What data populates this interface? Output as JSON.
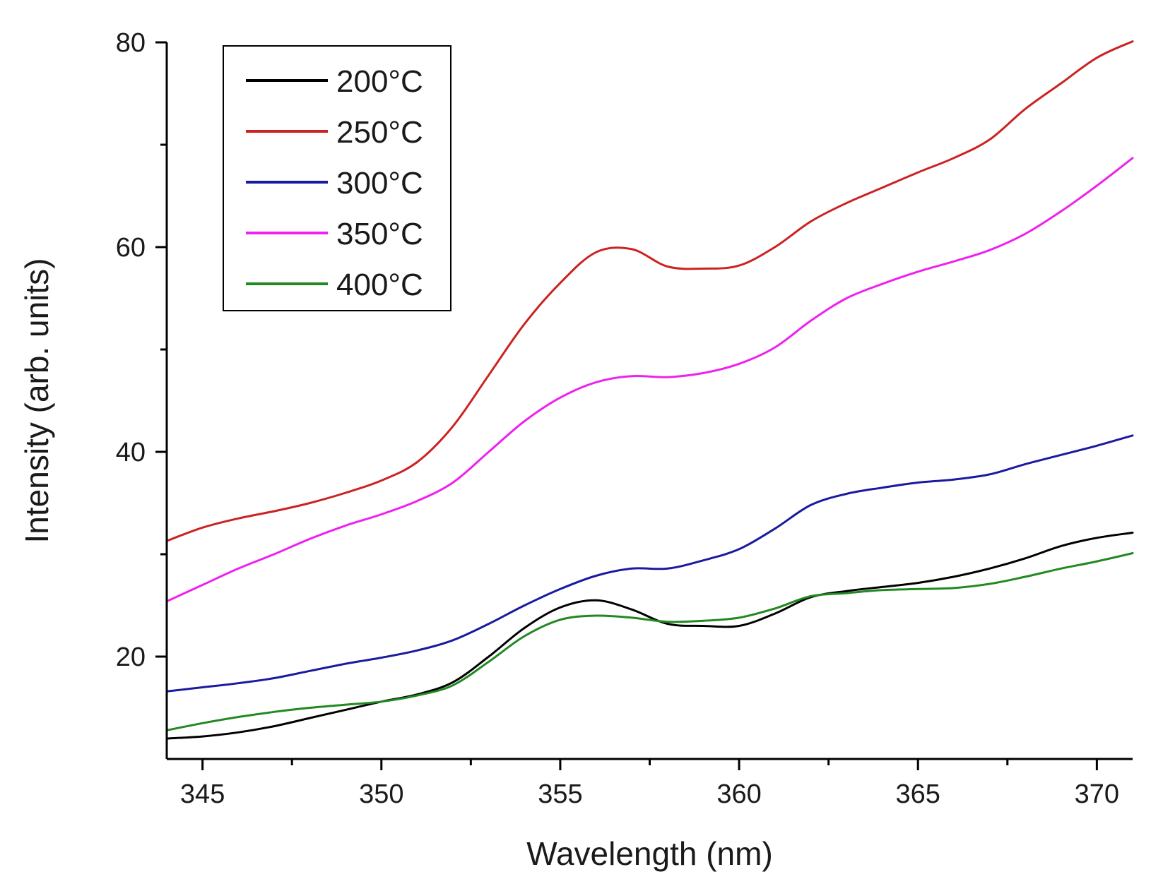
{
  "chart_data": {
    "type": "line",
    "title": "",
    "xlabel": "Wavelength (nm)",
    "ylabel": "Intensity (arb. units)",
    "xlim": [
      344,
      371
    ],
    "ylim": [
      10,
      80
    ],
    "x_ticks": [
      345,
      350,
      355,
      360,
      365,
      370
    ],
    "y_ticks": [
      20,
      40,
      60,
      80
    ],
    "grid": false,
    "legend_position": "top-left",
    "x": [
      344,
      345,
      346,
      347,
      348,
      349,
      350,
      351,
      352,
      353,
      354,
      355,
      356,
      357,
      358,
      359,
      360,
      361,
      362,
      363,
      364,
      365,
      366,
      367,
      368,
      369,
      370,
      371
    ],
    "series": [
      {
        "name": "200°C",
        "color": "#000000",
        "values": [
          12.0,
          12.2,
          12.6,
          13.2,
          14.0,
          14.8,
          15.6,
          16.3,
          17.5,
          20.0,
          22.8,
          24.8,
          25.5,
          24.6,
          23.2,
          23.0,
          23.0,
          24.2,
          25.8,
          26.4,
          26.8,
          27.2,
          27.8,
          28.6,
          29.6,
          30.8,
          31.6,
          32.1
        ]
      },
      {
        "name": "250°C",
        "color": "#cc2222",
        "values": [
          31.3,
          32.6,
          33.5,
          34.2,
          35.0,
          36.0,
          37.2,
          39.0,
          42.5,
          47.5,
          52.5,
          56.5,
          59.5,
          59.8,
          58.1,
          57.9,
          58.2,
          60.0,
          62.5,
          64.3,
          65.8,
          67.3,
          68.7,
          70.5,
          73.5,
          76.0,
          78.5,
          80.1
        ]
      },
      {
        "name": "300°C",
        "color": "#1a1aa0",
        "values": [
          16.6,
          17.0,
          17.4,
          17.9,
          18.6,
          19.3,
          19.9,
          20.6,
          21.6,
          23.2,
          25.0,
          26.6,
          27.9,
          28.6,
          28.6,
          29.4,
          30.5,
          32.5,
          34.8,
          35.9,
          36.5,
          37.0,
          37.3,
          37.8,
          38.8,
          39.7,
          40.6,
          41.6
        ]
      },
      {
        "name": "350°C",
        "color": "#ee22ee",
        "values": [
          25.4,
          27.0,
          28.6,
          30.0,
          31.5,
          32.8,
          33.9,
          35.2,
          37.0,
          40.0,
          43.0,
          45.3,
          46.8,
          47.4,
          47.3,
          47.7,
          48.6,
          50.2,
          52.8,
          55.0,
          56.4,
          57.6,
          58.6,
          59.7,
          61.3,
          63.5,
          66.0,
          68.7
        ]
      },
      {
        "name": "400°C",
        "color": "#228822",
        "values": [
          12.8,
          13.5,
          14.1,
          14.6,
          15.0,
          15.3,
          15.6,
          16.2,
          17.2,
          19.5,
          22.0,
          23.6,
          24.0,
          23.8,
          23.4,
          23.5,
          23.8,
          24.7,
          25.9,
          26.2,
          26.5,
          26.6,
          26.7,
          27.1,
          27.8,
          28.6,
          29.3,
          30.1
        ]
      }
    ]
  }
}
